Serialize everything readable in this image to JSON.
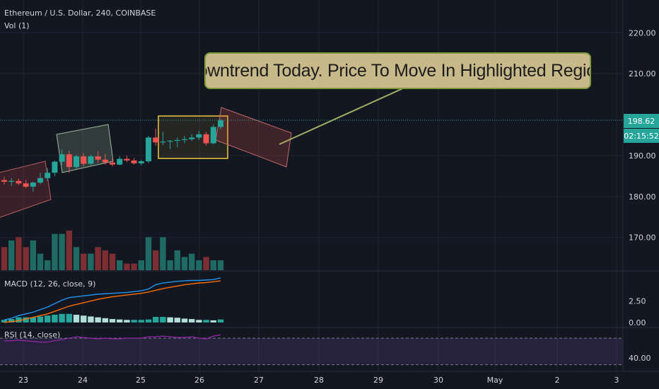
{
  "header": {
    "symbol": "Ethereum / U.S. Dollar, 240, COINBASE",
    "vol": "Vol (1)"
  },
  "annotation": {
    "text": "Downtrend Today. Price To Move In Highlighted Region."
  },
  "price_axis": {
    "ticks": [
      "220.00",
      "210.00",
      "190.00",
      "180.00",
      "170.00"
    ],
    "current_price": "198.62",
    "countdown": "02:15:52"
  },
  "macd": {
    "label": "MACD (12, 26, close, 9)",
    "ticks": [
      "2.50",
      "0.00"
    ]
  },
  "rsi": {
    "label": "RSI (14, close)",
    "ticks": [
      "40.00"
    ]
  },
  "time_axis": {
    "ticks": [
      "23",
      "24",
      "25",
      "26",
      "27",
      "28",
      "29",
      "30",
      "May",
      "2",
      "3"
    ]
  },
  "colors": {
    "bg": "#131722",
    "up": "#26a69a",
    "down": "#ef5350",
    "macd": "#2196f3",
    "signal": "#ff6d00",
    "rsi": "#9c27b0"
  },
  "chart_data": {
    "type": "candlestick",
    "price_range": [
      162,
      228
    ],
    "candles": [
      {
        "o": 184.0,
        "h": 184.8,
        "l": 183.0,
        "c": 183.6
      },
      {
        "o": 183.6,
        "h": 184.5,
        "l": 182.6,
        "c": 183.8
      },
      {
        "o": 183.8,
        "h": 184.4,
        "l": 182.8,
        "c": 183.2
      },
      {
        "o": 183.2,
        "h": 184.0,
        "l": 182.0,
        "c": 182.4
      },
      {
        "o": 182.4,
        "h": 183.6,
        "l": 181.2,
        "c": 183.4
      },
      {
        "o": 183.4,
        "h": 185.8,
        "l": 183.0,
        "c": 184.5
      },
      {
        "o": 184.5,
        "h": 187.0,
        "l": 183.8,
        "c": 185.8
      },
      {
        "o": 185.8,
        "h": 188.8,
        "l": 185.0,
        "c": 188.5
      },
      {
        "o": 188.5,
        "h": 191.5,
        "l": 187.8,
        "c": 190.3
      },
      {
        "o": 190.3,
        "h": 191.2,
        "l": 185.8,
        "c": 187.2
      },
      {
        "o": 187.2,
        "h": 190.2,
        "l": 186.8,
        "c": 189.8
      },
      {
        "o": 189.8,
        "h": 190.6,
        "l": 187.4,
        "c": 188.0
      },
      {
        "o": 188.0,
        "h": 190.2,
        "l": 187.6,
        "c": 189.8
      },
      {
        "o": 189.8,
        "h": 191.0,
        "l": 188.2,
        "c": 189.0
      },
      {
        "o": 189.0,
        "h": 190.4,
        "l": 187.8,
        "c": 188.3
      },
      {
        "o": 188.3,
        "h": 189.2,
        "l": 187.4,
        "c": 187.8
      },
      {
        "o": 187.8,
        "h": 189.8,
        "l": 187.6,
        "c": 189.2
      },
      {
        "o": 189.2,
        "h": 190.0,
        "l": 188.4,
        "c": 188.8
      },
      {
        "o": 188.8,
        "h": 189.4,
        "l": 187.8,
        "c": 188.1
      },
      {
        "o": 188.1,
        "h": 189.0,
        "l": 187.6,
        "c": 188.6
      },
      {
        "o": 188.6,
        "h": 194.8,
        "l": 188.2,
        "c": 194.4
      },
      {
        "o": 194.4,
        "h": 196.6,
        "l": 192.4,
        "c": 193.2
      },
      {
        "o": 193.2,
        "h": 195.8,
        "l": 192.6,
        "c": 193.4
      },
      {
        "o": 193.4,
        "h": 193.8,
        "l": 191.6,
        "c": 193.6
      },
      {
        "o": 193.6,
        "h": 194.4,
        "l": 192.0,
        "c": 193.8
      },
      {
        "o": 193.8,
        "h": 194.8,
        "l": 193.0,
        "c": 194.0
      },
      {
        "o": 194.0,
        "h": 195.2,
        "l": 193.6,
        "c": 194.4
      },
      {
        "o": 194.4,
        "h": 196.0,
        "l": 193.8,
        "c": 195.2
      },
      {
        "o": 195.2,
        "h": 195.8,
        "l": 192.4,
        "c": 193.0
      },
      {
        "o": 193.0,
        "h": 197.6,
        "l": 192.8,
        "c": 197.0
      },
      {
        "o": 197.0,
        "h": 199.0,
        "l": 196.4,
        "c": 198.6
      }
    ],
    "volume": [
      14,
      18,
      20,
      14,
      18,
      10,
      6,
      22,
      22,
      24,
      14,
      10,
      10,
      14,
      12,
      10,
      6,
      4,
      4,
      6,
      20,
      12,
      20,
      6,
      12,
      8,
      10,
      6,
      8,
      6,
      6
    ],
    "macd_line": [
      0.3,
      0.5,
      0.8,
      1.0,
      1.2,
      1.5,
      1.8,
      2.2,
      2.6,
      2.9,
      3.0,
      3.1,
      3.2,
      3.3,
      3.35,
      3.4,
      3.45,
      3.5,
      3.6,
      3.7,
      3.9,
      4.4,
      4.6,
      4.7,
      4.8,
      4.85,
      4.9,
      4.9,
      4.95,
      5.0,
      5.2
    ],
    "signal_line": [
      0.0,
      0.1,
      0.2,
      0.4,
      0.6,
      0.8,
      1.0,
      1.3,
      1.6,
      1.9,
      2.1,
      2.3,
      2.5,
      2.7,
      2.85,
      3.0,
      3.1,
      3.2,
      3.3,
      3.4,
      3.55,
      3.75,
      3.95,
      4.1,
      4.25,
      4.4,
      4.5,
      4.6,
      4.65,
      4.75,
      4.85
    ],
    "histogram": [
      0.3,
      0.4,
      0.6,
      0.6,
      0.6,
      0.7,
      0.8,
      0.9,
      1.0,
      1.0,
      0.9,
      0.8,
      0.7,
      0.6,
      0.5,
      0.4,
      0.35,
      0.3,
      0.3,
      0.3,
      0.35,
      0.65,
      0.65,
      0.6,
      0.55,
      0.45,
      0.4,
      0.3,
      0.3,
      0.25,
      0.35
    ],
    "rsi_values": [
      66,
      66,
      67,
      66,
      65,
      64,
      64,
      66,
      68,
      70,
      72,
      71,
      70,
      69,
      70,
      69,
      69,
      70,
      70,
      70,
      72,
      72,
      73,
      72,
      71,
      71,
      72,
      70,
      69,
      73,
      75
    ],
    "x_ticks": [
      "23",
      "24",
      "25",
      "26",
      "27",
      "28",
      "29",
      "30",
      "May",
      "2",
      "3"
    ],
    "y_ticks": [
      220,
      210,
      190,
      180,
      170
    ]
  }
}
